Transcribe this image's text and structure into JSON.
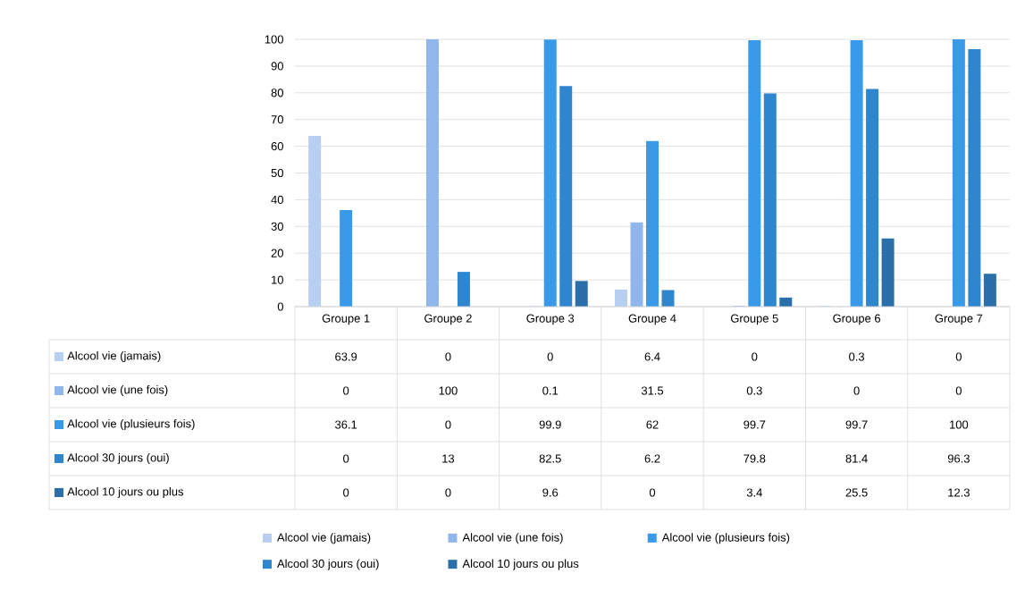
{
  "chart_data": {
    "type": "bar",
    "categories": [
      "Groupe 1",
      "Groupe 2",
      "Groupe 3",
      "Groupe 4",
      "Groupe 5",
      "Groupe 6",
      "Groupe 7"
    ],
    "series": [
      {
        "name": "Alcool vie (jamais)",
        "color": "#b7d0f2",
        "values": [
          63.9,
          0,
          0,
          6.4,
          0,
          0.3,
          0
        ]
      },
      {
        "name": "Alcool vie (une fois)",
        "color": "#8fb7ec",
        "values": [
          0,
          100,
          0.1,
          31.5,
          0.3,
          0,
          0
        ]
      },
      {
        "name": "Alcool vie (plusieurs fois)",
        "color": "#389ae8",
        "values": [
          36.1,
          0,
          99.9,
          62,
          99.7,
          99.7,
          100
        ]
      },
      {
        "name": "Alcool 30 jours (oui)",
        "color": "#2e86cf",
        "values": [
          0,
          13,
          82.5,
          6.2,
          79.8,
          81.4,
          96.3
        ]
      },
      {
        "name": "Alcool 10 jours ou plus",
        "color": "#2a6faa",
        "values": [
          0,
          0,
          9.6,
          0,
          3.4,
          25.5,
          12.3
        ]
      }
    ],
    "ylim": [
      0,
      100
    ],
    "yticks": [
      0,
      10,
      20,
      30,
      40,
      50,
      60,
      70,
      80,
      90,
      100
    ],
    "grid": "y",
    "legend": "bottom",
    "data_labels": true
  }
}
